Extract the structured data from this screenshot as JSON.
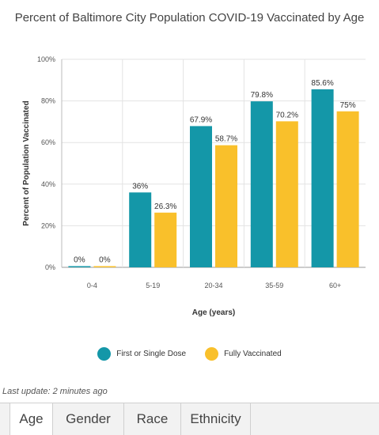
{
  "chart_data": {
    "type": "bar",
    "title": "Percent of Baltimore City Population COVID-19 Vaccinated by Age",
    "xlabel": "Age (years)",
    "ylabel": "Percent of Population Vaccinated",
    "categories": [
      "0-4",
      "5-19",
      "20-34",
      "35-59",
      "60+"
    ],
    "ylim": [
      0,
      100
    ],
    "yticks": [
      "0%",
      "20%",
      "40%",
      "60%",
      "80%",
      "100%"
    ],
    "series": [
      {
        "name": "First or Single Dose",
        "color": "#1497a8",
        "values": [
          0,
          36,
          67.9,
          79.8,
          85.6
        ],
        "labels": [
          "0%",
          "36%",
          "67.9%",
          "79.8%",
          "85.6%"
        ]
      },
      {
        "name": "Fully Vaccinated",
        "color": "#f9c02b",
        "values": [
          0,
          26.3,
          58.7,
          70.2,
          75
        ],
        "labels": [
          "0%",
          "26.3%",
          "58.7%",
          "70.2%",
          "75%"
        ]
      }
    ],
    "grid": true,
    "legend_position": "bottom"
  },
  "footer": {
    "last_update": "Last update: 2 minutes ago"
  },
  "tabs": [
    {
      "label": "Age",
      "active": true
    },
    {
      "label": "Gender",
      "active": false
    },
    {
      "label": "Race",
      "active": false
    },
    {
      "label": "Ethnicity",
      "active": false
    }
  ]
}
